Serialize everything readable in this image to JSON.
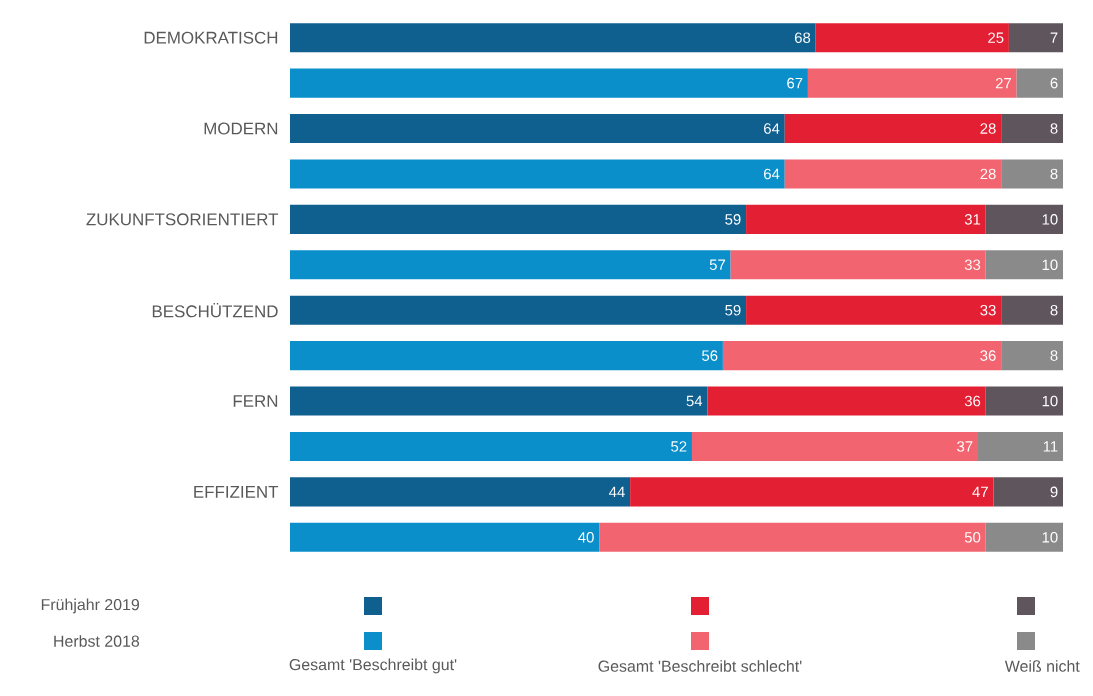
{
  "chart_data": {
    "type": "bar",
    "orientation": "horizontal",
    "stacked": true,
    "data_labels": true,
    "legend": "bottom",
    "tick_labels": "y",
    "categories": [
      "DEMOKRATISCH",
      null,
      "MODERN",
      null,
      "ZUKUNFTSORIENTIERT",
      null,
      "BESCHÜTZEND",
      null,
      "FERN",
      null,
      "EFFIZIENT",
      null
    ],
    "series": [
      {
        "name": "Gesamt 'Beschreibt gut'",
        "colors": [
          "#0f5f8f",
          "#0a8fcb",
          "#0f5f8f",
          "#0a8fcb",
          "#0f5f8f",
          "#0a8fcb",
          "#0f5f8f",
          "#0a8fcb",
          "#0f5f8f",
          "#0a8fcb",
          "#0f5f8f",
          "#0a8fcb"
        ],
        "values": [
          68,
          67,
          64,
          64,
          59,
          57,
          59,
          56,
          54,
          52,
          44,
          40
        ]
      },
      {
        "name": "Gesamt 'Beschreibt schlecht'",
        "colors": [
          "#e32033",
          "#f2646f",
          "#e32033",
          "#f2646f",
          "#e32033",
          "#f2646f",
          "#e32033",
          "#f2646f",
          "#e32033",
          "#f2646f",
          "#e32033",
          "#f2646f"
        ],
        "values": [
          25,
          27,
          28,
          28,
          31,
          33,
          33,
          36,
          36,
          37,
          47,
          50
        ]
      },
      {
        "name": "Weiß nicht",
        "colors": [
          "#5f555c",
          "#8a8a8a",
          "#5f555c",
          "#8a8a8a",
          "#5f555c",
          "#8a8a8a",
          "#5f555c",
          "#8a8a8a",
          "#5f555c",
          "#8a8a8a",
          "#5f555c",
          "#8a8a8a"
        ],
        "values": [
          7,
          6,
          8,
          8,
          10,
          10,
          8,
          8,
          10,
          11,
          9,
          10
        ]
      }
    ],
    "annotations": [
      "Frühjahr 2019",
      "Herbst 2018"
    ]
  }
}
